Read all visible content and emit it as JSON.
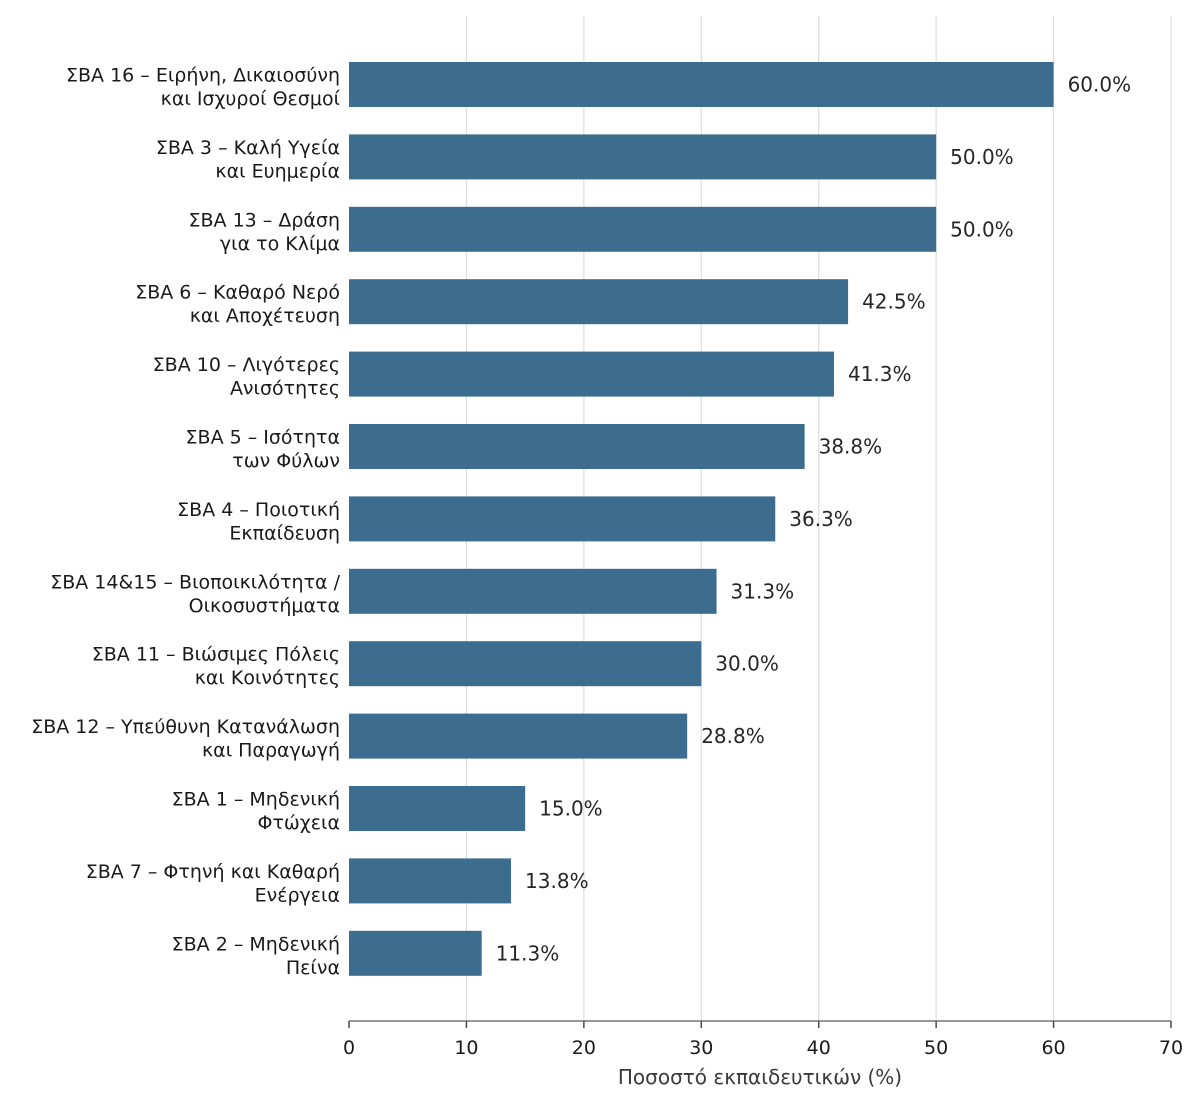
{
  "chart_data": {
    "type": "bar",
    "orientation": "horizontal",
    "categories": [
      [
        "ΣΒΑ 16 – Ειρήνη, Δικαιοσύνη",
        "και Ισχυροί Θεσμοί"
      ],
      [
        "ΣΒΑ 3 – Καλή Υγεία",
        "και Ευημερία"
      ],
      [
        "ΣΒΑ 13 – Δράση",
        "για το Κλίμα"
      ],
      [
        "ΣΒΑ 6 – Καθαρό Νερό",
        "και Αποχέτευση"
      ],
      [
        "ΣΒΑ 10 – Λιγότερες",
        "Ανισότητες"
      ],
      [
        "ΣΒΑ 5 – Ισότητα",
        "των Φύλων"
      ],
      [
        "ΣΒΑ 4 – Ποιοτική",
        "Εκπαίδευση"
      ],
      [
        "ΣΒΑ 14&15 – Βιοποικιλότητα /",
        "Οικοσυστήματα"
      ],
      [
        "ΣΒΑ 11 – Βιώσιμες Πόλεις",
        "και Κοινότητες"
      ],
      [
        "ΣΒΑ 12 – Υπεύθυνη Κατανάλωση",
        "και Παραγωγή"
      ],
      [
        "ΣΒΑ 1 – Μηδενική",
        "Φτώχεια"
      ],
      [
        "ΣΒΑ 7 – Φτηνή και Καθαρή",
        "Ενέργεια"
      ],
      [
        "ΣΒΑ 2 – Μηδενική",
        "Πείνα"
      ]
    ],
    "values": [
      60.0,
      50.0,
      50.0,
      42.5,
      41.3,
      38.8,
      36.3,
      31.3,
      30.0,
      28.8,
      15.0,
      13.8,
      11.3
    ],
    "value_labels": [
      "60.0%",
      "50.0%",
      "50.0%",
      "42.5%",
      "41.3%",
      "38.8%",
      "36.3%",
      "31.3%",
      "30.0%",
      "28.8%",
      "15.0%",
      "13.8%",
      "11.3%"
    ],
    "xlabel": "Ποσοστό εκπαιδευτικών (%)",
    "ylabel": "",
    "xlim": [
      0,
      70
    ],
    "xticks": [
      0,
      10,
      20,
      30,
      40,
      50,
      60,
      70
    ],
    "grid": "vertical",
    "legend": "none",
    "bar_color": "#3d6d8e"
  }
}
